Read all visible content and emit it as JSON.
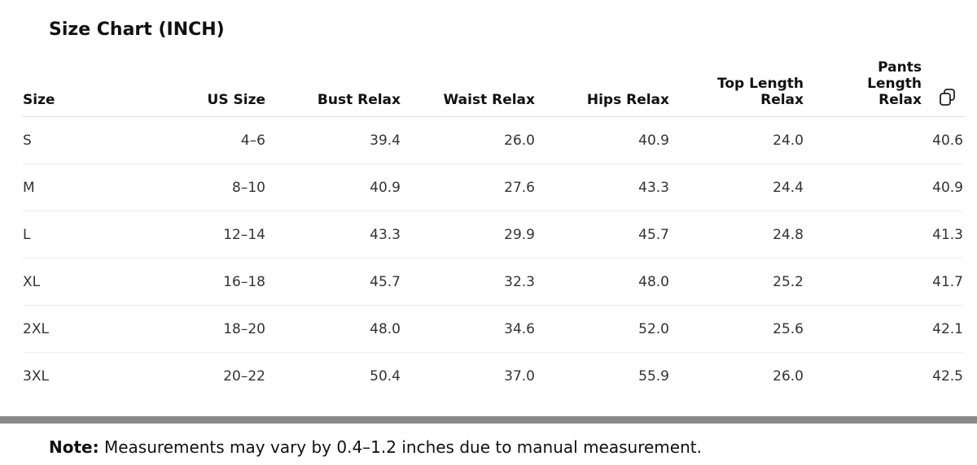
{
  "header": {
    "title": "Size Chart (INCH)"
  },
  "table": {
    "columns": [
      "Size",
      "US Size",
      "Bust Relax",
      "Waist Relax",
      "Hips Relax",
      "Top Length Relax",
      "Pants Length Relax"
    ],
    "rows": [
      [
        "S",
        "4–6",
        "39.4",
        "26.0",
        "40.9",
        "24.0",
        "40.6"
      ],
      [
        "M",
        "8–10",
        "40.9",
        "27.6",
        "43.3",
        "24.4",
        "40.9"
      ],
      [
        "L",
        "12–14",
        "43.3",
        "29.9",
        "45.7",
        "24.8",
        "41.3"
      ],
      [
        "XL",
        "16–18",
        "45.7",
        "32.3",
        "48.0",
        "25.2",
        "41.7"
      ],
      [
        "2XL",
        "18–20",
        "48.0",
        "34.6",
        "52.0",
        "25.6",
        "42.1"
      ],
      [
        "3XL",
        "20–22",
        "50.4",
        "37.0",
        "55.9",
        "26.0",
        "42.5"
      ]
    ]
  },
  "note": {
    "label": "Note:",
    "text": "Measurements may vary by 0.4–1.2 inches due to manual measurement."
  }
}
